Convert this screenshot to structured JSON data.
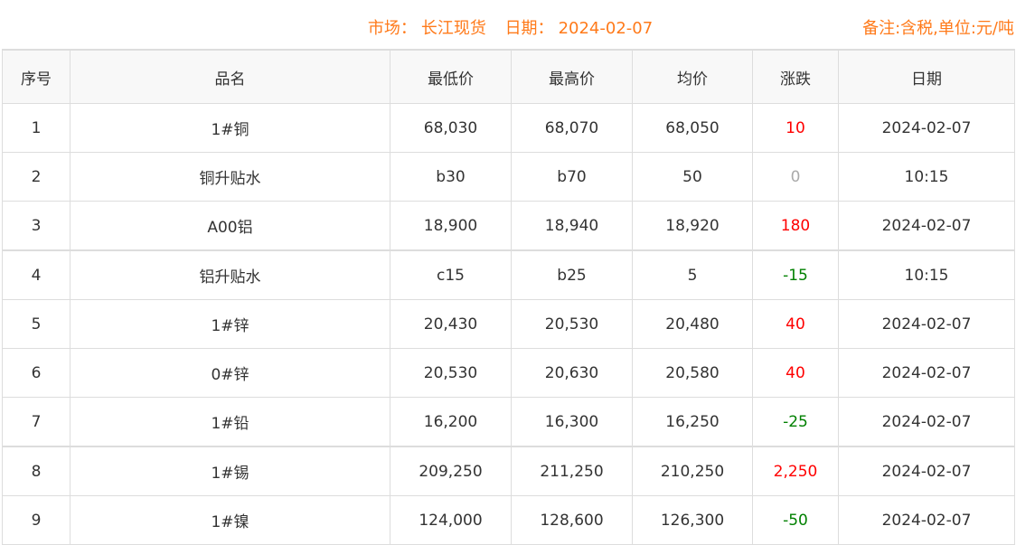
{
  "header": {
    "market_label": "市场：",
    "market": "长江现货",
    "date_label": "日期：",
    "date": "2024-02-07",
    "note": "备注:含税,单位:元/吨"
  },
  "colors": {
    "accent": "#ff7a1a",
    "up": "#ff0000",
    "down": "#008000",
    "flat": "#aaaaaa"
  },
  "columns": [
    "序号",
    "品名",
    "最低价",
    "最高价",
    "均价",
    "涨跌",
    "日期"
  ],
  "rows": [
    {
      "no": "1",
      "name": "1#铜",
      "low": "68,030",
      "high": "68,070",
      "avg": "68,050",
      "change": "10",
      "dir": "up",
      "date": "2024-02-07"
    },
    {
      "no": "2",
      "name": "铜升贴水",
      "low": "b30",
      "high": "b70",
      "avg": "50",
      "change": "0",
      "dir": "flat",
      "date": "10:15"
    },
    {
      "no": "3",
      "name": "A00铝",
      "low": "18,900",
      "high": "18,940",
      "avg": "18,920",
      "change": "180",
      "dir": "up",
      "date": "2024-02-07"
    },
    {
      "no": "4",
      "name": "铝升贴水",
      "low": "c15",
      "high": "b25",
      "avg": "5",
      "change": "-15",
      "dir": "down",
      "date": "10:15"
    },
    {
      "no": "5",
      "name": "1#锌",
      "low": "20,430",
      "high": "20,530",
      "avg": "20,480",
      "change": "40",
      "dir": "up",
      "date": "2024-02-07"
    },
    {
      "no": "6",
      "name": "0#锌",
      "low": "20,530",
      "high": "20,630",
      "avg": "20,580",
      "change": "40",
      "dir": "up",
      "date": "2024-02-07"
    },
    {
      "no": "7",
      "name": "1#铅",
      "low": "16,200",
      "high": "16,300",
      "avg": "16,250",
      "change": "-25",
      "dir": "down",
      "date": "2024-02-07"
    },
    {
      "no": "8",
      "name": "1#锡",
      "low": "209,250",
      "high": "211,250",
      "avg": "210,250",
      "change": "2,250",
      "dir": "up",
      "date": "2024-02-07"
    },
    {
      "no": "9",
      "name": "1#镍",
      "low": "124,000",
      "high": "128,600",
      "avg": "126,300",
      "change": "-50",
      "dir": "down",
      "date": "2024-02-07"
    }
  ]
}
